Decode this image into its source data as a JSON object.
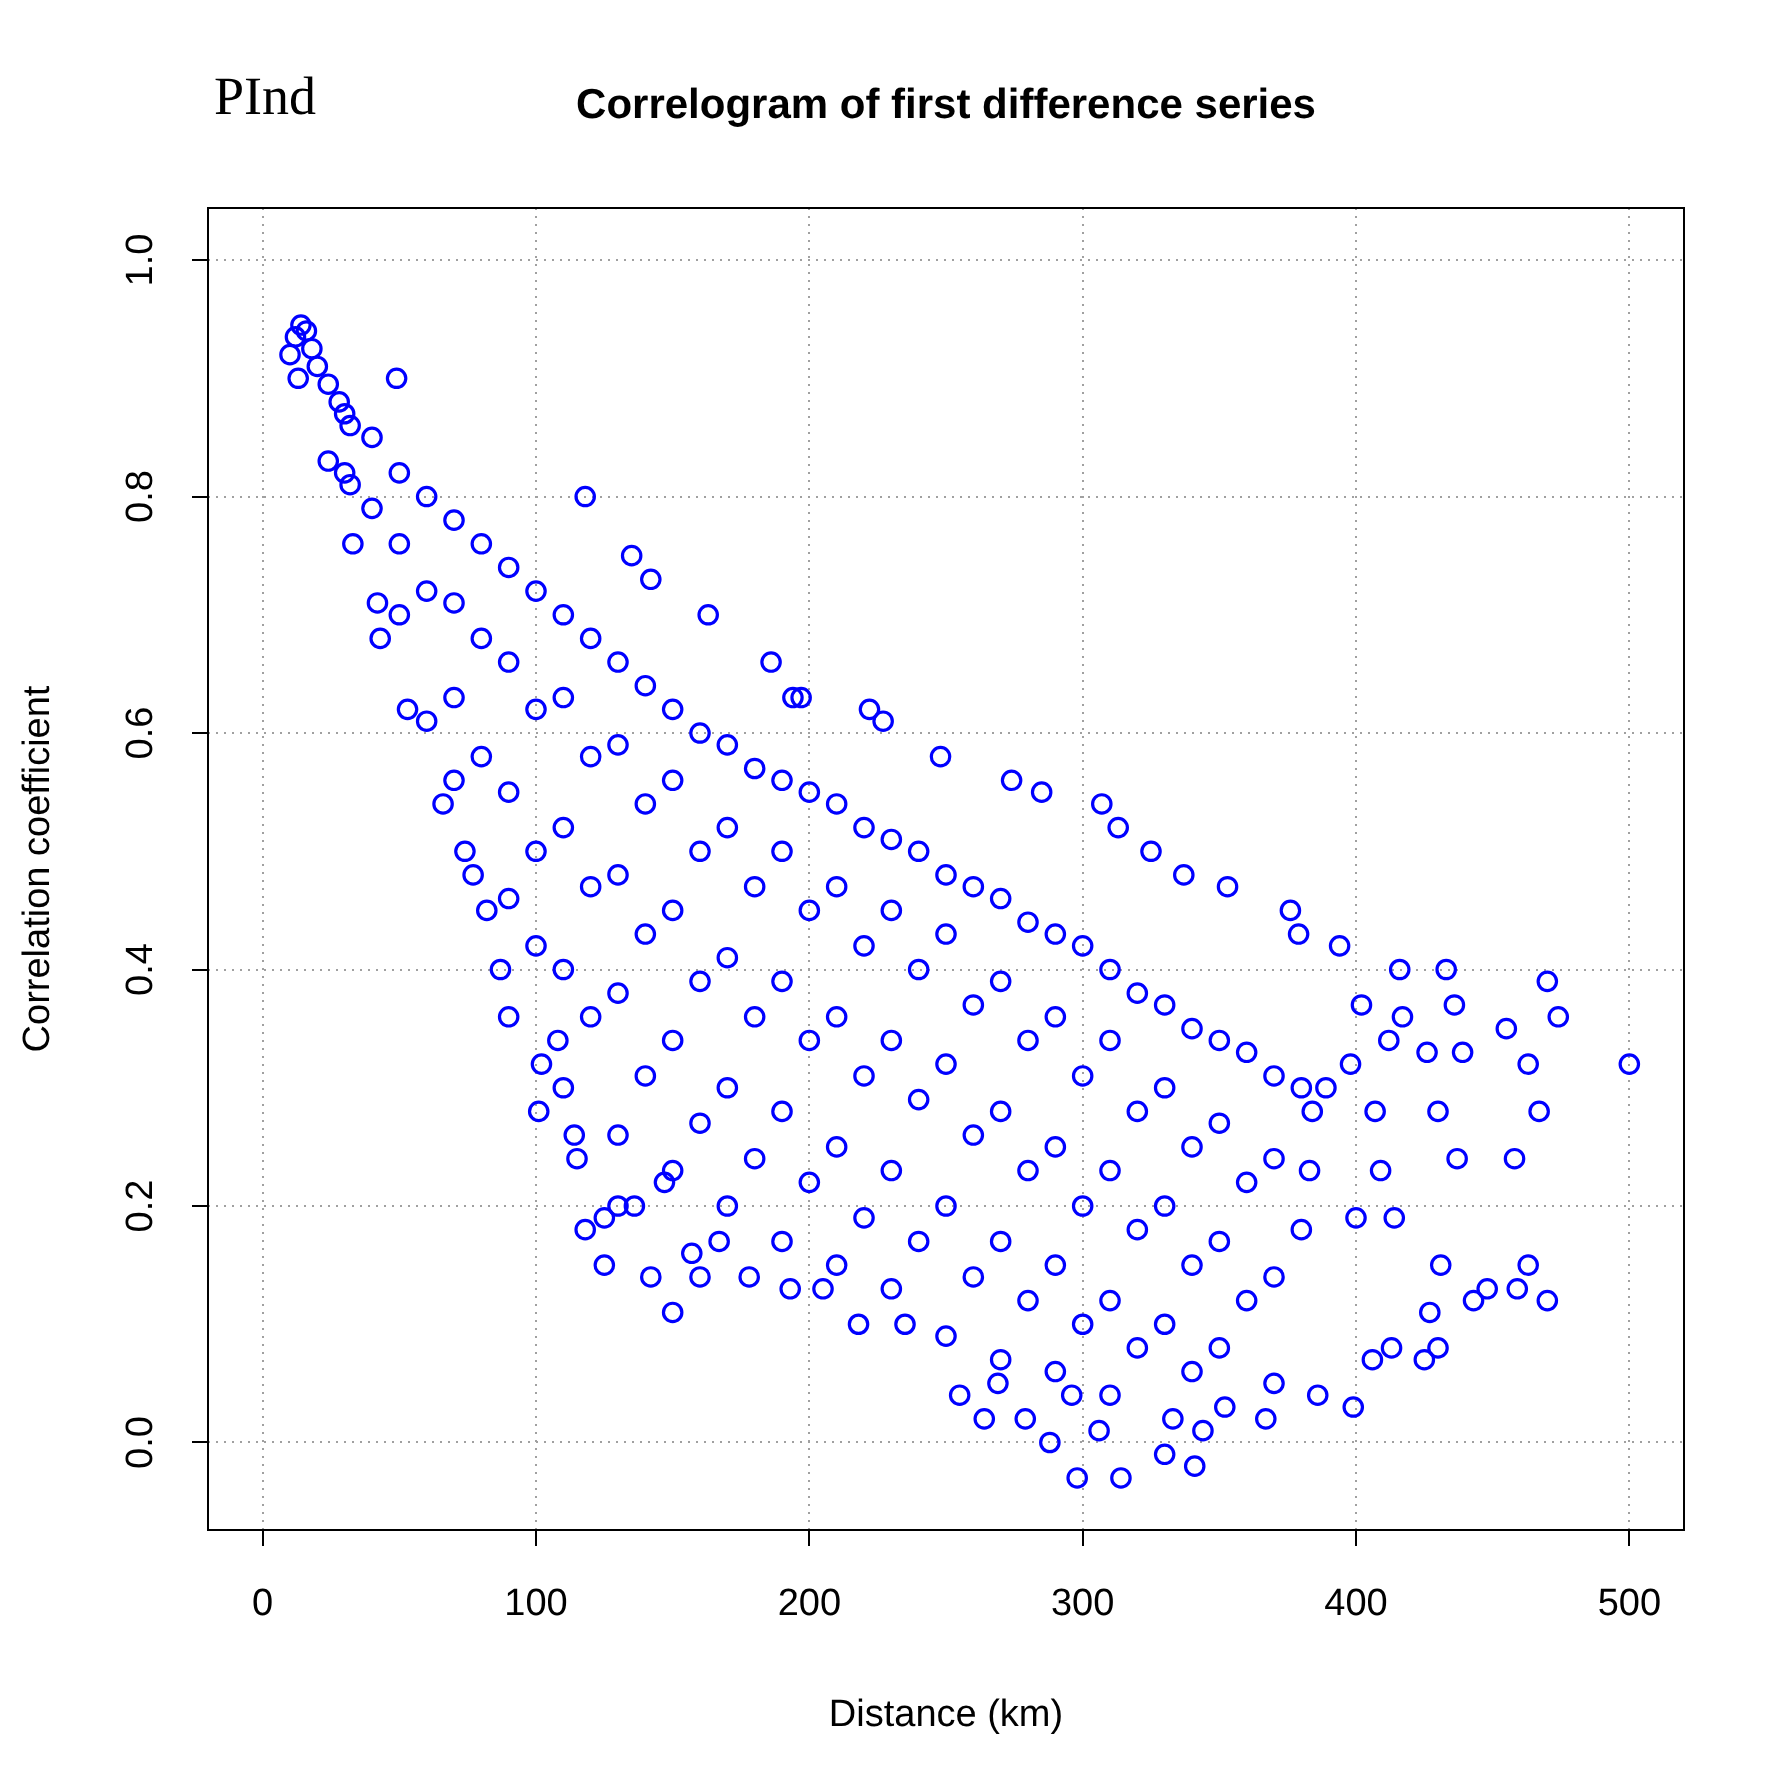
{
  "chart_data": {
    "type": "scatter",
    "title": "Correlogram of first difference series",
    "xlabel": "Distance (km)",
    "ylabel": "Correlation coefficient",
    "annotations": [
      "PInd"
    ],
    "color": "#0000ff",
    "marker": "circle",
    "grid": true,
    "xlim": [
      -20,
      520
    ],
    "ylim": [
      -0.074,
      1.044
    ],
    "xticks": [
      0,
      100,
      200,
      300,
      400,
      500
    ],
    "yticks": [
      {
        "value": 0,
        "label": "0.0"
      },
      0.2,
      0.4,
      0.6,
      0.8,
      {
        "value": 1,
        "label": "1.0"
      }
    ],
    "x": [
      10,
      12,
      14,
      16,
      18,
      13,
      20,
      24,
      28,
      32,
      24,
      33,
      32,
      49,
      42,
      43,
      53,
      60,
      66,
      74,
      77,
      118,
      135,
      142,
      163,
      186,
      194,
      82,
      87,
      90,
      102,
      101,
      115,
      118,
      125,
      136,
      142,
      150,
      160,
      157,
      178,
      193,
      167,
      125,
      108,
      114,
      147,
      197,
      222,
      227,
      248,
      274,
      285,
      307,
      313,
      325,
      337,
      353,
      376,
      394,
      379,
      416,
      433,
      470,
      436,
      455,
      474,
      402,
      417,
      412,
      426,
      439,
      463,
      500,
      398,
      407,
      430,
      467,
      409,
      437,
      458,
      384,
      389,
      383,
      400,
      414,
      431,
      448,
      443,
      463,
      459,
      470,
      427,
      430,
      425,
      406,
      413,
      399,
      386,
      367,
      341,
      330,
      314,
      298,
      288,
      264,
      255,
      269,
      218,
      205,
      235,
      306,
      344,
      279,
      296,
      333,
      352,
      40,
      40,
      60,
      60,
      80,
      80,
      80,
      100,
      100,
      100,
      100,
      120,
      120,
      120,
      120,
      140,
      140,
      140,
      140,
      160,
      160,
      160,
      160,
      180,
      180,
      180,
      180,
      200,
      200,
      200,
      200,
      220,
      220,
      220,
      220,
      240,
      240,
      240,
      240,
      260,
      260,
      260,
      260,
      280,
      280,
      280,
      280,
      300,
      300,
      300,
      300,
      320,
      320,
      320,
      320,
      340,
      340,
      340,
      340,
      360,
      360,
      360,
      380,
      380,
      30,
      30,
      50,
      50,
      50,
      70,
      70,
      70,
      70,
      90,
      90,
      90,
      90,
      110,
      110,
      110,
      110,
      110,
      130,
      130,
      130,
      130,
      130,
      130,
      150,
      150,
      150,
      150,
      150,
      170,
      170,
      170,
      170,
      170,
      190,
      190,
      190,
      190,
      190,
      210,
      210,
      210,
      210,
      210,
      230,
      230,
      230,
      230,
      230,
      250,
      250,
      250,
      250,
      250,
      270,
      270,
      270,
      270,
      270,
      290,
      290,
      290,
      290,
      290,
      310,
      310,
      310,
      310,
      310,
      330,
      330,
      330,
      330,
      350,
      350,
      350,
      350,
      370,
      370,
      370,
      370
    ],
    "values": [
      0.92,
      0.935,
      0.945,
      0.94,
      0.925,
      0.9,
      0.91,
      0.895,
      0.88,
      0.86,
      0.83,
      0.76,
      0.81,
      0.9,
      0.71,
      0.68,
      0.62,
      0.61,
      0.54,
      0.5,
      0.48,
      0.8,
      0.75,
      0.73,
      0.7,
      0.66,
      0.63,
      0.45,
      0.4,
      0.36,
      0.32,
      0.28,
      0.24,
      0.18,
      0.15,
      0.2,
      0.14,
      0.11,
      0.14,
      0.16,
      0.14,
      0.13,
      0.17,
      0.19,
      0.34,
      0.26,
      0.22,
      0.63,
      0.62,
      0.61,
      0.58,
      0.56,
      0.55,
      0.54,
      0.52,
      0.5,
      0.48,
      0.47,
      0.45,
      0.42,
      0.43,
      0.4,
      0.4,
      0.39,
      0.37,
      0.35,
      0.36,
      0.37,
      0.36,
      0.34,
      0.33,
      0.33,
      0.32,
      0.32,
      0.32,
      0.28,
      0.28,
      0.28,
      0.23,
      0.24,
      0.24,
      0.28,
      0.3,
      0.23,
      0.19,
      0.19,
      0.15,
      0.13,
      0.12,
      0.15,
      0.13,
      0.12,
      0.11,
      0.08,
      0.07,
      0.07,
      0.08,
      0.03,
      0.04,
      0.02,
      -0.02,
      -0.01,
      -0.03,
      -0.03,
      0.0,
      0.02,
      0.04,
      0.05,
      0.1,
      0.13,
      0.1,
      0.01,
      0.01,
      0.02,
      0.04,
      0.02,
      0.03,
      0.85,
      0.79,
      0.8,
      0.72,
      0.76,
      0.68,
      0.58,
      0.72,
      0.62,
      0.5,
      0.42,
      0.68,
      0.58,
      0.47,
      0.36,
      0.64,
      0.54,
      0.43,
      0.31,
      0.6,
      0.5,
      0.39,
      0.27,
      0.57,
      0.47,
      0.36,
      0.24,
      0.55,
      0.45,
      0.34,
      0.22,
      0.52,
      0.42,
      0.31,
      0.19,
      0.5,
      0.4,
      0.29,
      0.17,
      0.47,
      0.37,
      0.26,
      0.14,
      0.44,
      0.34,
      0.23,
      0.12,
      0.42,
      0.31,
      0.2,
      0.1,
      0.38,
      0.28,
      0.18,
      0.08,
      0.35,
      0.25,
      0.15,
      0.06,
      0.33,
      0.22,
      0.12,
      0.3,
      0.18,
      0.87,
      0.82,
      0.82,
      0.76,
      0.7,
      0.78,
      0.71,
      0.63,
      0.56,
      0.74,
      0.66,
      0.55,
      0.46,
      0.7,
      0.63,
      0.52,
      0.4,
      0.3,
      0.66,
      0.59,
      0.48,
      0.38,
      0.26,
      0.2,
      0.62,
      0.56,
      0.45,
      0.34,
      0.23,
      0.59,
      0.52,
      0.41,
      0.3,
      0.2,
      0.56,
      0.5,
      0.39,
      0.28,
      0.17,
      0.54,
      0.47,
      0.36,
      0.25,
      0.15,
      0.51,
      0.45,
      0.34,
      0.23,
      0.13,
      0.48,
      0.43,
      0.32,
      0.2,
      0.09,
      0.46,
      0.39,
      0.28,
      0.17,
      0.07,
      0.43,
      0.36,
      0.25,
      0.15,
      0.06,
      0.4,
      0.34,
      0.23,
      0.12,
      0.04,
      0.37,
      0.3,
      0.2,
      0.1,
      0.34,
      0.27,
      0.17,
      0.08,
      0.31,
      0.24,
      0.14,
      0.05
    ]
  }
}
